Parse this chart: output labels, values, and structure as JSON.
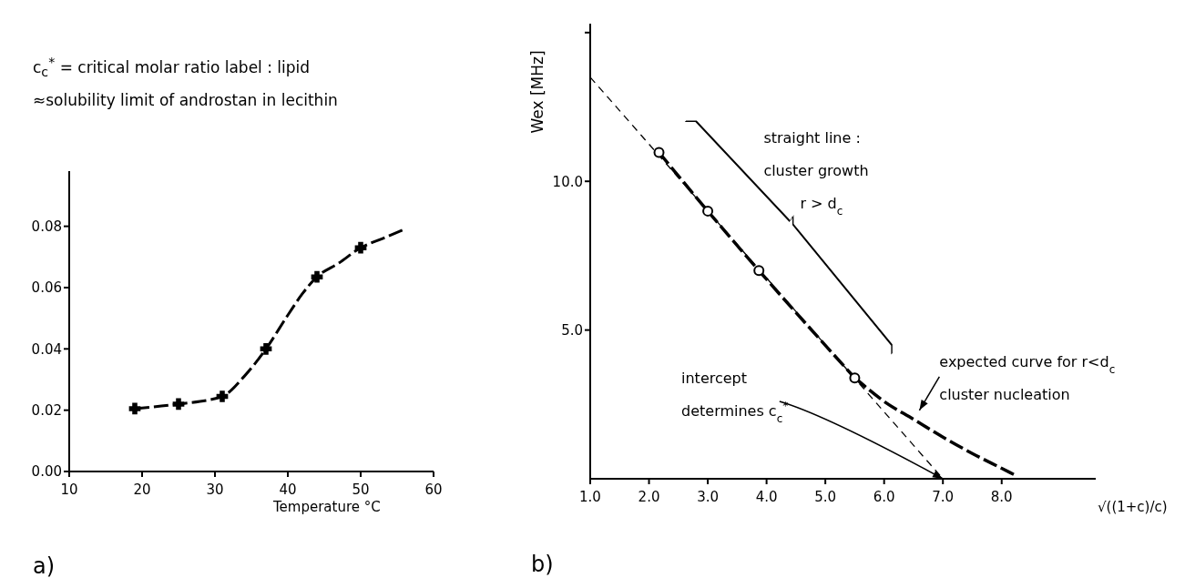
{
  "chart_data": [
    {
      "type": "line",
      "title": "c$_{c}$$^{*}$ = critical molar ratio label : lipid ≈solubility limit of androstan in lecithin",
      "xlabel": "Temperature °C",
      "xlim": [
        10,
        60
      ],
      "xticks": [
        10,
        20,
        30,
        40,
        50,
        60
      ],
      "ylim": [
        0,
        0.098
      ],
      "yticks": [
        {
          "value": 0,
          "label": "0.00"
        },
        {
          "value": 0.02,
          "label": "0.02"
        },
        {
          "value": 0.04,
          "label": "0.04"
        },
        {
          "value": 0.06,
          "label": "0.06"
        },
        {
          "value": 0.08,
          "label": "0.08"
        }
      ],
      "grid": false,
      "legend": false,
      "annotations": [
        "a)"
      ],
      "series": [
        {
          "type": "line",
          "color": "#000000",
          "line_style": "dashed",
          "marker": "none",
          "x": [
            19,
            25,
            31,
            34,
            37,
            40,
            42,
            44,
            47,
            50,
            53,
            56
          ],
          "values": [
            0.0205,
            0.022,
            0.0245,
            0.031,
            0.04,
            0.051,
            0.058,
            0.0635,
            0.068,
            0.073,
            0.076,
            0.079
          ]
        },
        {
          "type": "scatter",
          "color": "#000000",
          "marker": "cross",
          "x": [
            19,
            25,
            31,
            37,
            44,
            50
          ],
          "values": [
            0.0205,
            0.022,
            0.0245,
            0.04,
            0.0635,
            0.073
          ]
        }
      ]
    },
    {
      "type": "line",
      "ylabel": "Wex [MHz]",
      "xlabel": "√((1+c)/c)",
      "xlim": [
        1.0,
        9.6
      ],
      "xticks": [
        {
          "value": 1,
          "label": "1.0"
        },
        {
          "value": 2,
          "label": "2.0"
        },
        {
          "value": 3,
          "label": "3.0"
        },
        {
          "value": 4,
          "label": "4.0"
        },
        {
          "value": 5,
          "label": "5.0"
        },
        {
          "value": 6,
          "label": "6.0"
        },
        {
          "value": 7,
          "label": "7.0"
        },
        {
          "value": 8,
          "label": "8.0"
        }
      ],
      "ylim": [
        0,
        15.3
      ],
      "yticks": [
        {
          "value": 5,
          "label": "5.0"
        },
        {
          "value": 10,
          "label": "10.0"
        },
        {
          "value": 15,
          "label": null
        }
      ],
      "grid": false,
      "legend": false,
      "annotations": [
        "b)",
        "straight line : cluster growth r > d$_{c}$",
        {
          "text": "intercept determines c$_{c}$$^{*}$",
          "x": 7.0,
          "y": 0
        },
        "expected curve for r<d$_{c}$ cluster nucleation"
      ],
      "series": [
        {
          "type": "line",
          "color": "#000000",
          "line_style": "dashed",
          "marker": "none",
          "x": [
            1.0,
            7.0
          ],
          "values": [
            13.5,
            0
          ]
        },
        {
          "type": "line",
          "color": "#000000",
          "line_style": "dashed",
          "marker": "circle",
          "x": [
            2.17,
            3.0,
            3.87,
            5.5
          ],
          "values": [
            10.97,
            9.0,
            7.0,
            3.39
          ]
        },
        {
          "type": "line",
          "color": "#000000",
          "line_style": "dashed",
          "marker": "none",
          "x": [
            5.5,
            6.0,
            6.5,
            7.0,
            7.5,
            8.0,
            8.25
          ],
          "values": [
            3.4,
            2.6,
            2.0,
            1.4,
            0.85,
            0.35,
            0.1
          ]
        }
      ]
    }
  ]
}
